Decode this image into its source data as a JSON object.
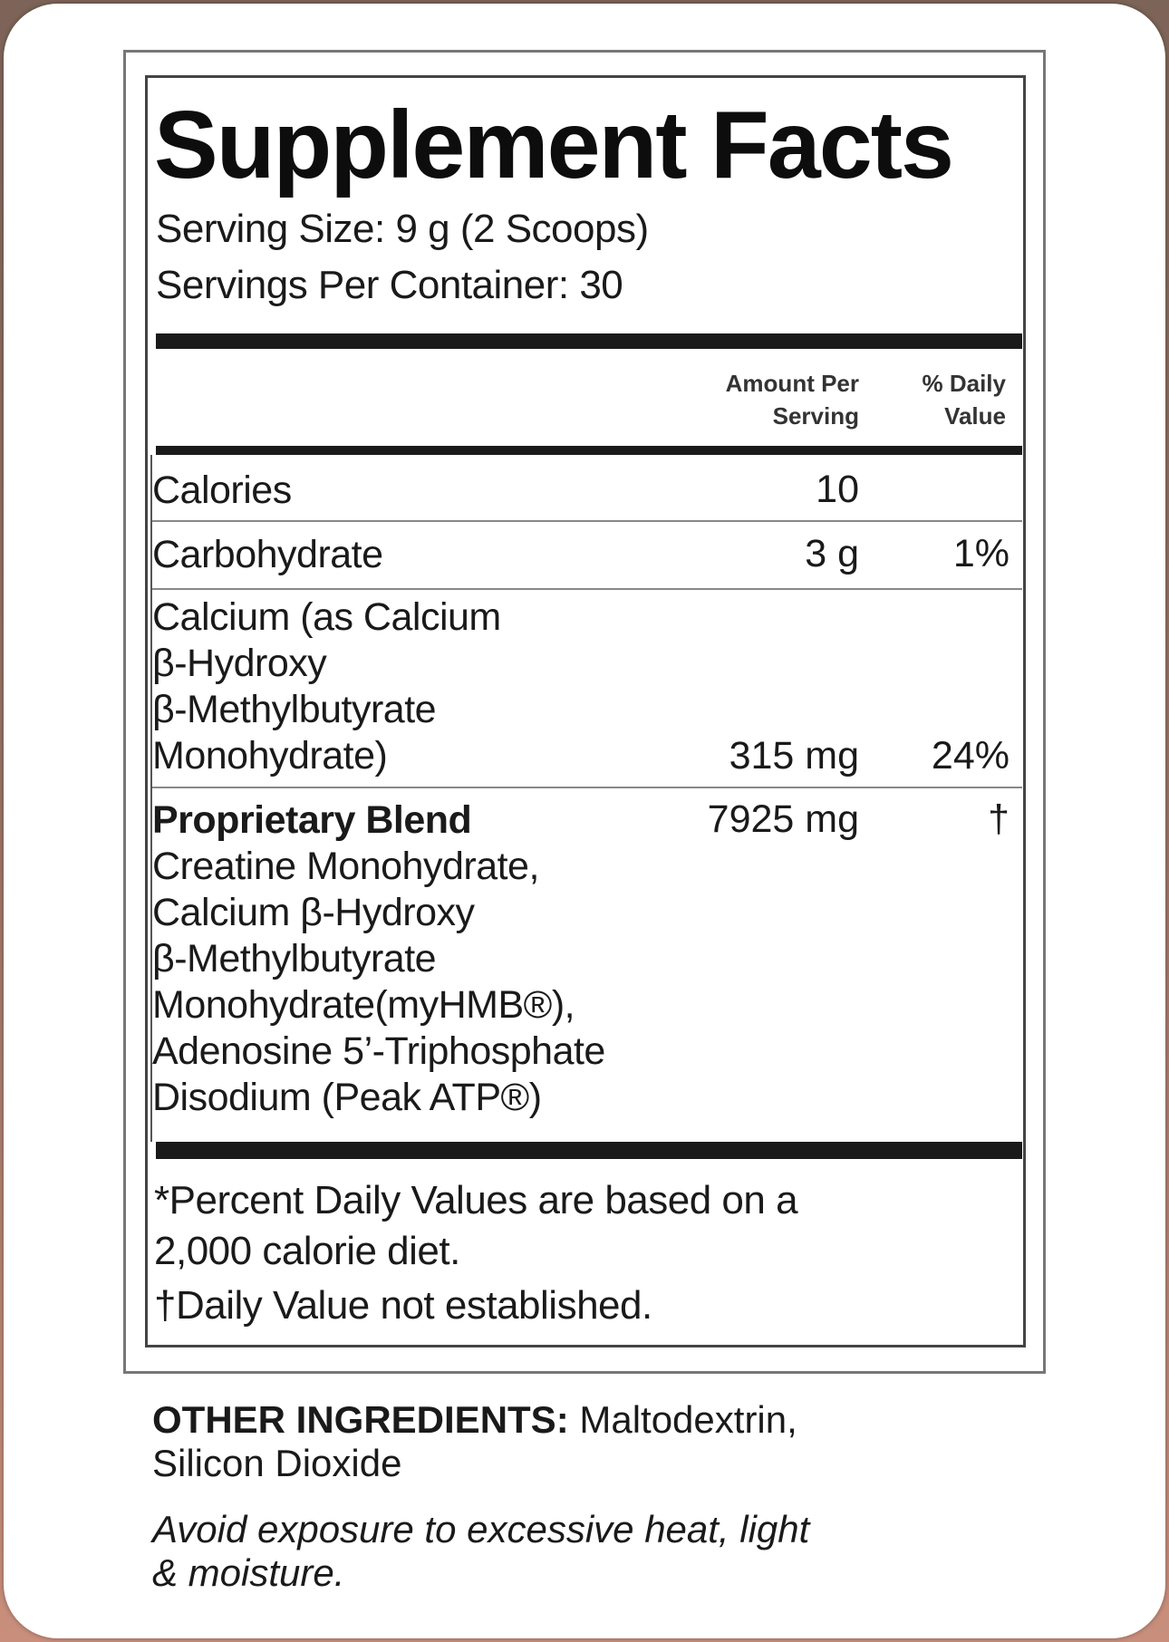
{
  "label": {
    "title": "Supplement Facts",
    "serving_size": "Serving Size: 9 g (2 Scoops)",
    "servings_per_container": "Servings Per Container: 30",
    "header": {
      "amount_line1": "Amount Per",
      "amount_line2": "Serving",
      "dv_line1": "% Daily",
      "dv_line2": "Value"
    },
    "rows": [
      {
        "name_lines": [
          "Calories"
        ],
        "amount": "10",
        "dv": ""
      },
      {
        "name_lines": [
          "Carbohydrate"
        ],
        "amount": "3 g",
        "dv": "1%"
      },
      {
        "name_lines": [
          "Calcium (as Calcium",
          "β-Hydroxy",
          "β-Methylbutyrate",
          "Monohydrate)"
        ],
        "amount": "315 mg",
        "dv": "24%"
      }
    ],
    "blend": {
      "name": "Proprietary Blend",
      "amount": "7925 mg",
      "dv": "†",
      "lines": [
        "Creatine Monohydrate,",
        "Calcium β-Hydroxy",
        "β-Methylbutyrate",
        "Monohydrate(myHMB®),",
        "Adenosine 5’-Triphosphate",
        "Disodium (Peak ATP®)"
      ]
    },
    "footnotes": [
      "*Percent Daily Values are based on a",
      "2,000 calorie diet.",
      "†Daily Value not established."
    ]
  },
  "other_ingredients": {
    "heading": "OTHER INGREDIENTS:",
    "line1": " Maltodextrin,",
    "line2": "Silicon Dioxide"
  },
  "storage": {
    "line1": "Avoid exposure to excessive heat, light",
    "line2": "& moisture."
  }
}
